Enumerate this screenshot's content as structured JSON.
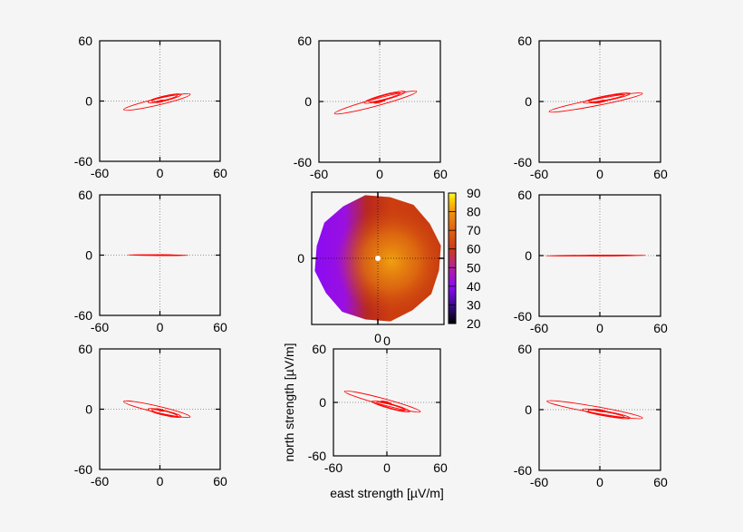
{
  "chart_data": [
    {
      "type": "contour",
      "panel": "top-left",
      "xlim": [
        -60,
        60
      ],
      "ylim": [
        -60,
        60
      ],
      "xticks": [
        "-60",
        "0",
        "60"
      ],
      "yticks": [
        "60",
        "0",
        "-60"
      ],
      "grid": "zero-lines",
      "color": "#ff0000",
      "ellipse": {
        "semi_major": 34,
        "semi_minor": 3.2,
        "angle_deg": 13,
        "center": [
          -3,
          -1
        ]
      }
    },
    {
      "type": "contour",
      "panel": "top-middle",
      "xlim": [
        -60,
        60
      ],
      "ylim": [
        -60,
        60
      ],
      "xticks": [
        "-60",
        "0",
        "60"
      ],
      "yticks": [
        "60",
        "0",
        "-60"
      ],
      "grid": "zero-lines",
      "color": "#ff0000",
      "ellipse": {
        "semi_major": 42,
        "semi_minor": 3.5,
        "angle_deg": 15,
        "center": [
          -4,
          -1
        ]
      }
    },
    {
      "type": "contour",
      "panel": "top-right",
      "xlim": [
        -60,
        60
      ],
      "ylim": [
        -60,
        60
      ],
      "xticks": [
        "-60",
        "0",
        "60"
      ],
      "yticks": [
        "60",
        "0",
        "-60"
      ],
      "grid": "zero-lines",
      "color": "#ff0000",
      "ellipse": {
        "semi_major": 47,
        "semi_minor": 3.2,
        "angle_deg": 11,
        "center": [
          -4,
          -1
        ]
      }
    },
    {
      "type": "contour",
      "panel": "middle-left",
      "xlim": [
        -60,
        60
      ],
      "ylim": [
        -60,
        60
      ],
      "xticks": [
        "-60",
        "0",
        "60"
      ],
      "yticks": [
        "60",
        "0",
        "-60"
      ],
      "grid": "zero-lines",
      "color": "#ff0000",
      "ellipse": {
        "semi_major": 30,
        "semi_minor": 0.3,
        "angle_deg": -0.5,
        "center": [
          -2,
          0
        ]
      }
    },
    {
      "type": "heatmap",
      "panel": "center",
      "xticks": [
        "0"
      ],
      "yticks": [
        "0"
      ],
      "grid": "zero-lines",
      "colorbar": {
        "min": 20,
        "max": 90,
        "ticks": [
          "90",
          "80",
          "70",
          "60",
          "50",
          "40",
          "30",
          "20"
        ],
        "palette": [
          "#000000",
          "#3b0a8c",
          "#8a0af5",
          "#b5209a",
          "#cc3a1a",
          "#e06010",
          "#f09010",
          "#ffd000",
          "#ffff30"
        ]
      },
      "description_values": {
        "low_side": "west",
        "high_side": "east-center",
        "max_approx": 80,
        "min_approx": 40
      }
    },
    {
      "type": "contour",
      "panel": "middle-right",
      "xlim": [
        -60,
        60
      ],
      "ylim": [
        -60,
        60
      ],
      "xticks": [
        "-60",
        "0",
        "60"
      ],
      "yticks": [
        "60",
        "0",
        "-60"
      ],
      "grid": "zero-lines",
      "color": "#ff0000",
      "ellipse": {
        "semi_major": 49,
        "semi_minor": 0.3,
        "angle_deg": 0.3,
        "center": [
          -4,
          0
        ]
      }
    },
    {
      "type": "contour",
      "panel": "bottom-left",
      "xlim": [
        -60,
        60
      ],
      "ylim": [
        -60,
        60
      ],
      "xticks": [
        "-60",
        "0",
        "60"
      ],
      "yticks": [
        "60",
        "0",
        "-60"
      ],
      "grid": "zero-lines",
      "color": "#ff0000",
      "ellipse": {
        "semi_major": 34,
        "semi_minor": 3.2,
        "angle_deg": -13,
        "center": [
          -3,
          0
        ]
      }
    },
    {
      "type": "contour",
      "panel": "bottom-middle",
      "xlim": [
        -60,
        60
      ],
      "ylim": [
        -60,
        60
      ],
      "xticks": [
        "-60",
        "0",
        "60"
      ],
      "yticks": [
        "60",
        "0",
        "-60"
      ],
      "xlabel": "east strength [µV/m]",
      "ylabel": "north strength [µV/m]",
      "grid": "zero-lines",
      "color": "#ff0000",
      "ellipse": {
        "semi_major": 44,
        "semi_minor": 3.5,
        "angle_deg": -15,
        "center": [
          -5,
          1
        ]
      }
    },
    {
      "type": "contour",
      "panel": "bottom-right",
      "xlim": [
        -60,
        60
      ],
      "ylim": [
        -60,
        60
      ],
      "xticks": [
        "-60",
        "0",
        "60"
      ],
      "yticks": [
        "60",
        "0",
        "-60"
      ],
      "grid": "zero-lines",
      "color": "#ff0000",
      "ellipse": {
        "semi_major": 48,
        "semi_minor": 3.2,
        "angle_deg": -10,
        "center": [
          -5,
          0
        ]
      }
    }
  ]
}
